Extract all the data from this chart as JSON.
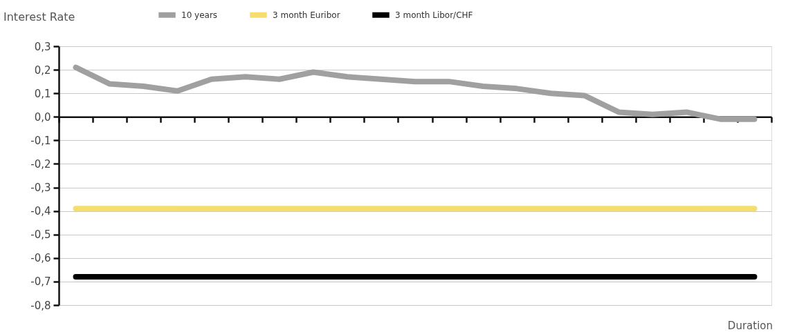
{
  "chart_data": {
    "type": "line",
    "ylabel": "Interest Rate",
    "xlabel": "Duration",
    "categories": [
      null,
      null,
      null,
      null,
      null,
      null,
      null,
      null,
      null,
      null,
      null,
      null,
      null,
      null,
      null,
      null,
      null,
      null,
      null,
      null,
      null
    ],
    "series": [
      {
        "name": "10 years",
        "color": "#a0a0a0",
        "values": [
          0.21,
          0.14,
          0.13,
          0.11,
          0.16,
          0.17,
          0.16,
          0.19,
          0.17,
          0.16,
          0.15,
          0.15,
          0.13,
          0.12,
          0.1,
          0.09,
          0.02,
          0.01,
          0.02,
          -0.01,
          -0.01
        ]
      },
      {
        "name": "3 month Euribor",
        "color": "#f5de6e",
        "values": [
          -0.39,
          -0.39,
          -0.39,
          -0.39,
          -0.39,
          -0.39,
          -0.39,
          -0.39,
          -0.39,
          -0.39,
          -0.39,
          -0.39,
          -0.39,
          -0.39,
          -0.39,
          -0.39,
          -0.39,
          -0.39,
          -0.39,
          -0.39,
          -0.39
        ]
      },
      {
        "name": "3 month Libor/CHF",
        "color": "#000000",
        "values": [
          -0.68,
          -0.68,
          -0.68,
          -0.68,
          -0.68,
          -0.68,
          -0.68,
          -0.68,
          -0.68,
          -0.68,
          -0.68,
          -0.68,
          -0.68,
          -0.68,
          -0.68,
          -0.68,
          -0.68,
          -0.68,
          -0.68,
          -0.68,
          -0.68
        ]
      }
    ],
    "ylim": [
      -0.8,
      0.3
    ],
    "yticks": [
      {
        "value": 0.3,
        "label": "0,3"
      },
      {
        "value": 0.2,
        "label": "0,2"
      },
      {
        "value": 0.1,
        "label": "0,1"
      },
      {
        "value": 0.0,
        "label": "0,0"
      },
      {
        "value": -0.1,
        "label": "-0,1"
      },
      {
        "value": -0.2,
        "label": "-0,2"
      },
      {
        "value": -0.3,
        "label": "-0,3"
      },
      {
        "value": -0.4,
        "label": "-0,4"
      },
      {
        "value": -0.5,
        "label": "-0,5"
      },
      {
        "value": -0.6,
        "label": "-0,6"
      },
      {
        "value": -0.7,
        "label": "-0,7"
      },
      {
        "value": -0.8,
        "label": "-0,8"
      }
    ],
    "grid": "y",
    "legend": "top",
    "marker": "none",
    "line_style": "solid",
    "tick_labels": "y"
  }
}
